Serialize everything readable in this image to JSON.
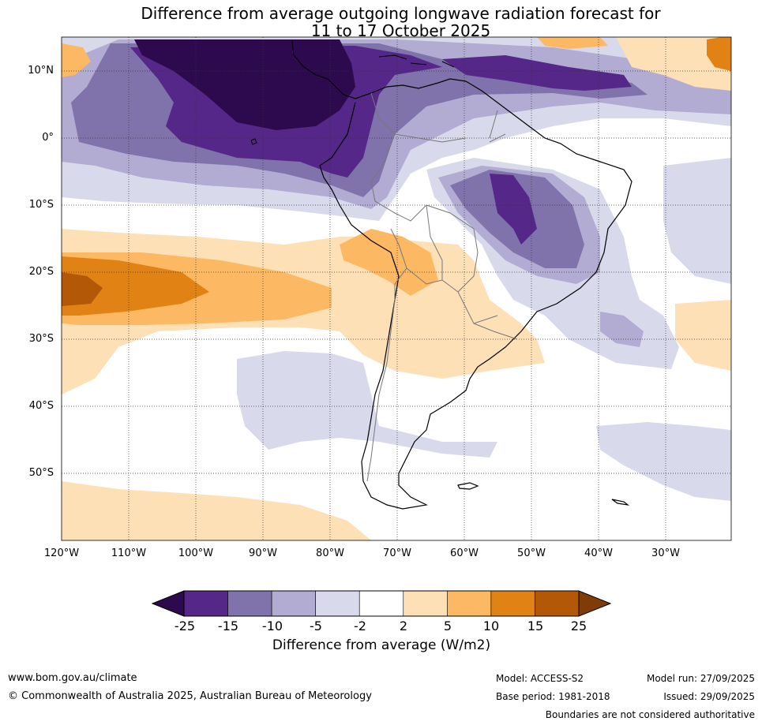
{
  "title": {
    "line1": "Difference from average outgoing longwave radiation forecast for",
    "line2": "11 to 17 October 2025"
  },
  "map": {
    "lat_labels": [
      "10°N",
      "0°",
      "10°S",
      "20°S",
      "30°S",
      "40°S",
      "50°S"
    ],
    "lon_labels": [
      "120°W",
      "110°W",
      "100°W",
      "90°W",
      "80°W",
      "70°W",
      "60°W",
      "50°W",
      "40°W",
      "30°W"
    ]
  },
  "colorbar": {
    "colors": [
      "#2d0a4e",
      "#542788",
      "#8073ac",
      "#b2abd2",
      "#d8daeb",
      "#ffffff",
      "#fee0b6",
      "#fdb863",
      "#e08214",
      "#b35806",
      "#7f3b08"
    ],
    "tick_labels": [
      "-25",
      "-15",
      "-10",
      "-5",
      "-2",
      "2",
      "5",
      "10",
      "15",
      "25"
    ],
    "title": "Difference from average (W/m2)"
  },
  "footer": {
    "website": "www.bom.gov.au/climate",
    "copyright": "© Commonwealth of Australia 2025, Australian Bureau of Meteorology",
    "model": "Model: ACCESS-S2",
    "base_period": "Base period: 1981-2018",
    "model_run": "Model run: 27/09/2025",
    "issued": "Issued: 29/09/2025",
    "disclaimer": "Boundaries are not considered authoritative"
  }
}
